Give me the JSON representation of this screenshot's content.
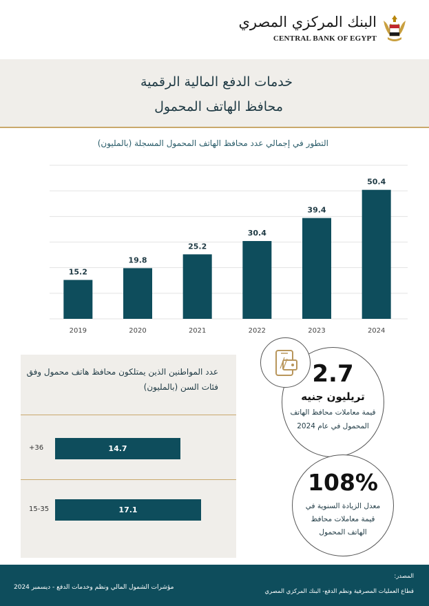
{
  "header": {
    "logo_arabic": "البنك المركزي المصري",
    "logo_english": "CENTRAL BANK OF EGYPT"
  },
  "title": {
    "line1": "خدمات الدفع  المالية الرقمية",
    "line2": "محافظ الهاتف المحمول"
  },
  "chart_data": {
    "type": "bar",
    "title": "التطور في إجمالي عدد محافظ الهاتف المحمول المسجلة (بالمليون)",
    "categories": [
      "2019",
      "2020",
      "2021",
      "2022",
      "2023",
      "2024"
    ],
    "values": [
      15.2,
      19.8,
      25.2,
      30.4,
      39.4,
      50.4
    ],
    "value_labels": [
      "15.2",
      "19.8",
      "25.2",
      "30.4",
      "39.4",
      "50.4"
    ],
    "ylim": [
      0,
      60
    ],
    "grid": true,
    "bar_color": "#0e4d5c"
  },
  "age_groups": {
    "title": "عدد المواطنين الذين يمتلكون محافظ هاتف محمول وفق فئات السن (بالمليون)",
    "items": [
      {
        "label": "+36",
        "value": 14.7,
        "value_label": "14.7"
      },
      {
        "label": "15-35",
        "value": 17.1,
        "value_label": "17.1"
      }
    ]
  },
  "stats": {
    "icon": "mobile-wallet-icon",
    "transactions_value": "2.7",
    "transactions_unit": "تريليون جنيه",
    "transactions_desc1": "قيمة معاملات محافظ الهاتف",
    "transactions_desc2": "المحمول في عام 2024",
    "growth_value": "108%",
    "growth_desc1": "معدل الزيادة السنوية في",
    "growth_desc2": "قيمة معاملات  محافظ",
    "growth_desc3": "الهاتف المحمول"
  },
  "footer": {
    "left_text": "مؤشرات الشمول المالي ونظم وخدمات الدفع -  ديسمبر 2024",
    "source_label": "المصدر:",
    "source_text": "قطاع العمليات المصرفية ونظم  الدفع- البنك المركزي المصري"
  },
  "colors": {
    "primary": "#0e4d5c",
    "gold": "#c9a86b",
    "band": "#f0eeea"
  }
}
